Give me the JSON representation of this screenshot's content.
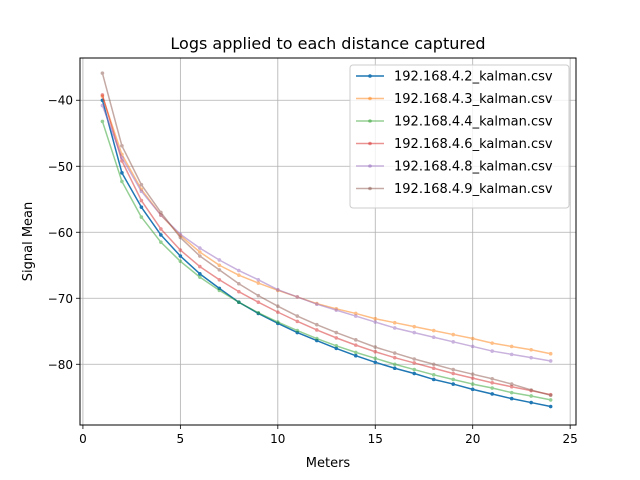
{
  "chart_data": {
    "type": "line",
    "title": "Logs applied to each distance captured",
    "xlabel": "Meters",
    "ylabel": "Signal Mean",
    "xlim": [
      -0.15,
      25.3
    ],
    "ylim": [
      -89.2,
      -33.6
    ],
    "xticks": [
      0,
      5,
      10,
      15,
      20,
      25
    ],
    "yticks": [
      -80,
      -70,
      -60,
      -50,
      -40
    ],
    "grid": true,
    "legend_position": "top-right",
    "x": [
      1,
      2,
      3,
      4,
      5,
      6,
      7,
      8,
      9,
      10,
      11,
      12,
      13,
      14,
      15,
      16,
      17,
      18,
      19,
      20,
      21,
      22,
      23,
      24
    ],
    "series": [
      {
        "name": "192.168.4.2_kalman.csv",
        "color": "#1f77b4",
        "alpha": 1.0,
        "values": [
          -40.0,
          -51.0,
          -56.2,
          -60.4,
          -63.6,
          -66.3,
          -68.5,
          -70.6,
          -72.3,
          -73.8,
          -75.2,
          -76.4,
          -77.6,
          -78.7,
          -79.7,
          -80.6,
          -81.4,
          -82.3,
          -83.0,
          -83.8,
          -84.5,
          -85.2,
          -85.8,
          -86.4
        ]
      },
      {
        "name": "192.168.4.3_kalman.csv",
        "color": "#ff7f0e",
        "alpha": 0.5,
        "values": [
          -39.4,
          -48.2,
          -53.5,
          -57.4,
          -60.5,
          -63.0,
          -65.0,
          -66.5,
          -67.7,
          -68.8,
          -69.8,
          -70.8,
          -71.6,
          -72.3,
          -73.1,
          -73.7,
          -74.3,
          -74.9,
          -75.5,
          -76.1,
          -76.8,
          -77.3,
          -77.8,
          -78.4
        ]
      },
      {
        "name": "192.168.4.4_kalman.csv",
        "color": "#2ca02c",
        "alpha": 0.5,
        "values": [
          -43.2,
          -52.3,
          -57.7,
          -61.5,
          -64.4,
          -66.8,
          -68.8,
          -70.6,
          -72.2,
          -73.6,
          -74.9,
          -76.1,
          -77.2,
          -78.2,
          -79.1,
          -80.0,
          -80.8,
          -81.6,
          -82.3,
          -83.0,
          -83.6,
          -84.3,
          -84.8,
          -85.4
        ]
      },
      {
        "name": "192.168.4.6_kalman.csv",
        "color": "#d62728",
        "alpha": 0.5,
        "values": [
          -39.2,
          -49.2,
          -55.2,
          -59.5,
          -62.7,
          -65.2,
          -67.2,
          -69.0,
          -70.6,
          -72.1,
          -73.5,
          -74.8,
          -76.0,
          -77.1,
          -78.1,
          -79.0,
          -79.8,
          -80.6,
          -81.4,
          -82.1,
          -82.8,
          -83.4,
          -84.0,
          -84.6
        ]
      },
      {
        "name": "192.168.4.8_kalman.csv",
        "color": "#9467bd",
        "alpha": 0.5,
        "values": [
          -40.8,
          -48.7,
          -53.8,
          -57.4,
          -60.3,
          -62.4,
          -64.2,
          -65.8,
          -67.2,
          -68.7,
          -69.8,
          -70.9,
          -71.8,
          -72.7,
          -73.6,
          -74.5,
          -75.2,
          -75.9,
          -76.6,
          -77.3,
          -78.0,
          -78.5,
          -79.0,
          -79.5
        ]
      },
      {
        "name": "192.168.4.9_kalman.csv",
        "color": "#8c564b",
        "alpha": 0.5,
        "values": [
          -35.9,
          -46.9,
          -52.8,
          -57.0,
          -60.8,
          -63.6,
          -65.7,
          -67.8,
          -69.6,
          -71.2,
          -72.7,
          -74.0,
          -75.2,
          -76.3,
          -77.4,
          -78.3,
          -79.2,
          -80.0,
          -80.8,
          -81.5,
          -82.2,
          -83.0,
          -83.9,
          -84.7
        ]
      }
    ]
  }
}
